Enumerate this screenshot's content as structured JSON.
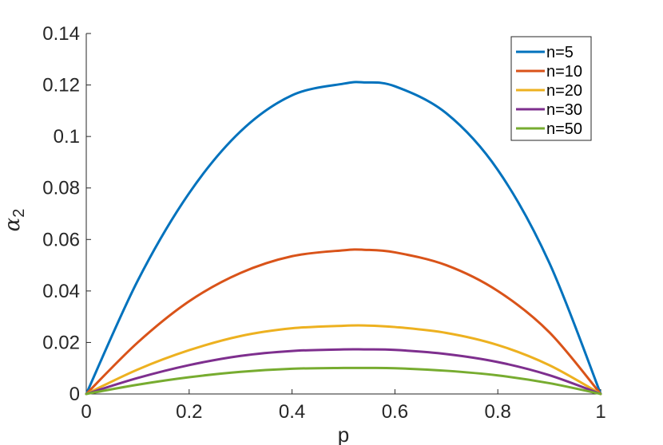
{
  "chart_data": {
    "type": "line",
    "title": "",
    "xlabel": "p",
    "ylabel": {
      "symbol": "α",
      "subscript": "2"
    },
    "xlim": [
      0,
      1
    ],
    "ylim": [
      0,
      0.14
    ],
    "xticks": [
      0,
      0.2,
      0.4,
      0.6,
      0.8,
      1
    ],
    "xtick_labels": [
      "0",
      "0.2",
      "0.4",
      "0.6",
      "0.8",
      "1"
    ],
    "yticks": [
      0,
      0.02,
      0.04,
      0.06,
      0.08,
      0.1,
      0.12,
      0.14
    ],
    "ytick_labels": [
      "0",
      "0.02",
      "0.04",
      "0.06",
      "0.08",
      "0.1",
      "0.12",
      "0.14"
    ],
    "grid": false,
    "legend_position": "top-right",
    "x": [
      0,
      0.1,
      0.2,
      0.3,
      0.4,
      0.5,
      0.54,
      0.6,
      0.7,
      0.8,
      0.9,
      1
    ],
    "series": [
      {
        "name": "n=5",
        "color": "#0072BD",
        "values": [
          0,
          0.044,
          0.078,
          0.102,
          0.116,
          0.1205,
          0.121,
          0.1195,
          0.109,
          0.087,
          0.051,
          0
        ]
      },
      {
        "name": "n=10",
        "color": "#D95319",
        "values": [
          0,
          0.02,
          0.036,
          0.047,
          0.0535,
          0.0558,
          0.056,
          0.055,
          0.05,
          0.04,
          0.024,
          0
        ]
      },
      {
        "name": "n=20",
        "color": "#EDB120",
        "values": [
          0,
          0.0095,
          0.017,
          0.0225,
          0.0255,
          0.0265,
          0.0266,
          0.026,
          0.0237,
          0.019,
          0.0112,
          0
        ]
      },
      {
        "name": "n=30",
        "color": "#7E2F8E",
        "values": [
          0,
          0.0062,
          0.0112,
          0.0148,
          0.0167,
          0.0173,
          0.0173,
          0.0171,
          0.0155,
          0.0124,
          0.0073,
          0
        ]
      },
      {
        "name": "n=50",
        "color": "#77AC30",
        "values": [
          0,
          0.0036,
          0.0065,
          0.0086,
          0.0098,
          0.0101,
          0.0101,
          0.01,
          0.009,
          0.0072,
          0.0042,
          0
        ]
      }
    ]
  }
}
